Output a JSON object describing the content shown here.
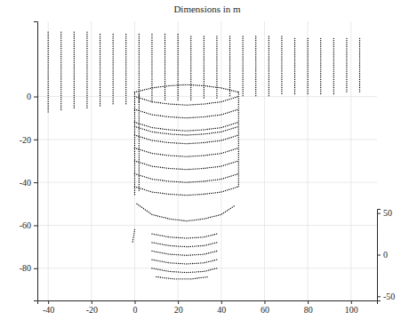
{
  "chart_data": {
    "type": "line",
    "title": "Dimensions in m",
    "color": "#000000",
    "line_style": "dotted",
    "grid": true,
    "xlim": [
      -45,
      112
    ],
    "xticks": [
      -40,
      -20,
      0,
      20,
      40,
      60,
      80,
      100
    ],
    "ylim": [
      -95,
      35
    ],
    "yticks": [
      -80,
      -60,
      -40,
      -20,
      0
    ],
    "y2lim": [
      -55,
      55
    ],
    "y2ticks": [
      -50,
      0,
      50
    ],
    "series": [
      {
        "x": [
          -40,
          -40
        ],
        "values": [
          30,
          -8
        ]
      },
      {
        "x": [
          -34,
          -34
        ],
        "values": [
          30,
          -7
        ]
      },
      {
        "x": [
          -28,
          -28
        ],
        "values": [
          30,
          -6
        ]
      },
      {
        "x": [
          -22,
          -22
        ],
        "values": [
          30,
          -6
        ]
      },
      {
        "x": [
          -16,
          -16
        ],
        "values": [
          29,
          -5
        ]
      },
      {
        "x": [
          -10,
          -10
        ],
        "values": [
          29,
          -4
        ]
      },
      {
        "x": [
          -4,
          -4
        ],
        "values": [
          29,
          -4
        ]
      },
      {
        "x": [
          2,
          2
        ],
        "values": [
          29,
          -3
        ]
      },
      {
        "x": [
          8,
          8
        ],
        "values": [
          29,
          -3
        ]
      },
      {
        "x": [
          14,
          14
        ],
        "values": [
          29,
          -2
        ]
      },
      {
        "x": [
          20,
          20
        ],
        "values": [
          29,
          -2
        ]
      },
      {
        "x": [
          26,
          26
        ],
        "values": [
          28,
          -2
        ]
      },
      {
        "x": [
          32,
          32
        ],
        "values": [
          28,
          -1
        ]
      },
      {
        "x": [
          38,
          38
        ],
        "values": [
          28,
          -1
        ]
      },
      {
        "x": [
          44,
          44
        ],
        "values": [
          28,
          0
        ]
      },
      {
        "x": [
          50,
          50
        ],
        "values": [
          28,
          0
        ]
      },
      {
        "x": [
          56,
          56
        ],
        "values": [
          28,
          0
        ]
      },
      {
        "x": [
          62,
          62
        ],
        "values": [
          28,
          0
        ]
      },
      {
        "x": [
          68,
          68
        ],
        "values": [
          28,
          1
        ]
      },
      {
        "x": [
          74,
          74
        ],
        "values": [
          27,
          1
        ]
      },
      {
        "x": [
          80,
          80
        ],
        "values": [
          27,
          1
        ]
      },
      {
        "x": [
          86,
          86
        ],
        "values": [
          27,
          1
        ]
      },
      {
        "x": [
          92,
          92
        ],
        "values": [
          27,
          1
        ]
      },
      {
        "x": [
          98,
          98
        ],
        "values": [
          27,
          2
        ]
      },
      {
        "x": [
          104,
          104
        ],
        "values": [
          27,
          2
        ]
      },
      {
        "x": [
          0,
          8,
          16,
          24,
          32,
          40,
          48
        ],
        "values": [
          2,
          4,
          5,
          5.5,
          5,
          4,
          2
        ]
      },
      {
        "x": [
          0,
          8,
          16,
          24,
          32,
          40,
          48
        ],
        "values": [
          0,
          -2.5,
          -3.5,
          -4,
          -3.5,
          -2.5,
          0
        ]
      },
      {
        "x": [
          0,
          8,
          16,
          24,
          32,
          40,
          48
        ],
        "values": [
          -6,
          -8.5,
          -9.5,
          -10,
          -9.5,
          -8.5,
          -6
        ]
      },
      {
        "x": [
          0,
          8,
          16,
          24,
          32,
          40,
          48
        ],
        "values": [
          -12,
          -14.5,
          -15.5,
          -16,
          -15.5,
          -14.5,
          -12
        ]
      },
      {
        "x": [
          0,
          8,
          16,
          24,
          32,
          40,
          48
        ],
        "values": [
          -14,
          -16.5,
          -17.5,
          -18,
          -17.5,
          -16.5,
          -14
        ]
      },
      {
        "x": [
          0,
          8,
          16,
          24,
          32,
          40,
          48
        ],
        "values": [
          -18,
          -20.5,
          -21.5,
          -22,
          -21.5,
          -20.5,
          -18
        ]
      },
      {
        "x": [
          0,
          8,
          16,
          24,
          32,
          40,
          48
        ],
        "values": [
          -24,
          -26.5,
          -27.5,
          -28,
          -27.5,
          -26.5,
          -24
        ]
      },
      {
        "x": [
          0,
          8,
          16,
          24,
          32,
          40,
          48
        ],
        "values": [
          -30,
          -32.5,
          -33.5,
          -34,
          -33.5,
          -32.5,
          -30
        ]
      },
      {
        "x": [
          0,
          8,
          16,
          24,
          32,
          40,
          48
        ],
        "values": [
          -36,
          -38.5,
          -39.5,
          -40,
          -39.5,
          -38.5,
          -36
        ]
      },
      {
        "x": [
          0,
          8,
          16,
          24,
          32,
          40,
          48
        ],
        "values": [
          -42,
          -44.5,
          -45.5,
          -46,
          -45.5,
          -44.5,
          -42
        ]
      },
      {
        "x": [
          0,
          0
        ],
        "values": [
          2,
          -46
        ]
      },
      {
        "x": [
          2,
          2
        ],
        "values": [
          1,
          -44
        ]
      },
      {
        "x": [
          48,
          48
        ],
        "values": [
          2,
          -42
        ]
      },
      {
        "x": [
          1,
          8,
          16,
          24,
          32,
          40,
          46
        ],
        "values": [
          -50,
          -55,
          -57,
          -58,
          -57,
          -55,
          -51
        ]
      },
      {
        "x": [
          0,
          -1
        ],
        "values": [
          -62,
          -68
        ]
      },
      {
        "x": [
          8,
          16,
          24,
          32,
          38
        ],
        "values": [
          -64,
          -65.5,
          -66,
          -65.5,
          -64
        ]
      },
      {
        "x": [
          8,
          16,
          24,
          32,
          38
        ],
        "values": [
          -68,
          -69.5,
          -70,
          -69.5,
          -68
        ]
      },
      {
        "x": [
          8,
          16,
          24,
          32,
          38
        ],
        "values": [
          -72,
          -73.5,
          -74,
          -73.5,
          -72
        ]
      },
      {
        "x": [
          8,
          16,
          24,
          32,
          38
        ],
        "values": [
          -76,
          -77.5,
          -78,
          -77.5,
          -76
        ]
      },
      {
        "x": [
          8,
          16,
          24,
          32,
          38
        ],
        "values": [
          -80,
          -81.5,
          -82,
          -81.5,
          -80
        ]
      },
      {
        "x": [
          10,
          18,
          26,
          34
        ],
        "values": [
          -84,
          -85,
          -85,
          -84
        ]
      }
    ]
  }
}
